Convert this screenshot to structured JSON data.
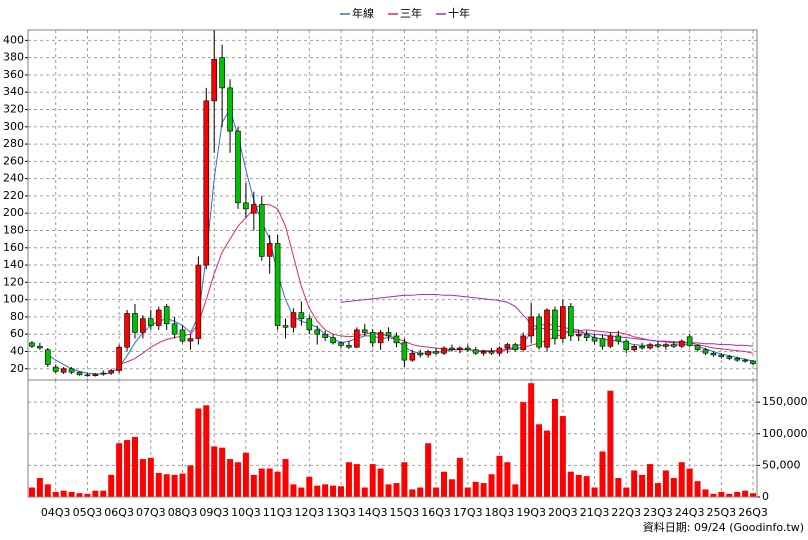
{
  "chart_data": [
    {
      "type": "candlestick",
      "categories": [
        null,
        null,
        null,
        "04Q3",
        null,
        null,
        null,
        "05Q3",
        null,
        null,
        null,
        "06Q3",
        null,
        null,
        null,
        "07Q3",
        null,
        null,
        null,
        "08Q3",
        null,
        null,
        null,
        "09Q3",
        null,
        null,
        null,
        "10Q3",
        null,
        null,
        null,
        "11Q3",
        null,
        null,
        null,
        "12Q3",
        null,
        null,
        null,
        "13Q3",
        null,
        null,
        null,
        "14Q3",
        null,
        null,
        null,
        "15Q3",
        null,
        null,
        null,
        "16Q3",
        null,
        null,
        null,
        "17Q3",
        null,
        null,
        null,
        "18Q3",
        null,
        null,
        null,
        "19Q3",
        null,
        null,
        null,
        "20Q3",
        null,
        null,
        null,
        "21Q3",
        null,
        null,
        null,
        "22Q3",
        null,
        null,
        null,
        "23Q3",
        null,
        null,
        null,
        "24Q3",
        null,
        null,
        null,
        "25Q3",
        null,
        null,
        null,
        "26Q3"
      ],
      "open": [
        50,
        46,
        42,
        22,
        16,
        20,
        16,
        13,
        12,
        14,
        15,
        18,
        45,
        84,
        62,
        78,
        70,
        92,
        72,
        65,
        52,
        55,
        140,
        330,
        380,
        345,
        295,
        212,
        200,
        210,
        150,
        165,
        70,
        68,
        85,
        78,
        65,
        60,
        56,
        50,
        47,
        45,
        65,
        62,
        50,
        62,
        58,
        50,
        30,
        38,
        36,
        40,
        38,
        44,
        42,
        44,
        42,
        38,
        40,
        38,
        44,
        48,
        42,
        58,
        80,
        45,
        88,
        55,
        92,
        58,
        60,
        56,
        55,
        46,
        58,
        52,
        42,
        46,
        44,
        48,
        46,
        48,
        46,
        57,
        47,
        42,
        38,
        36,
        34,
        32,
        30,
        29
      ],
      "high": [
        52,
        50,
        44,
        25,
        22,
        22,
        17,
        15,
        15,
        18,
        20,
        48,
        88,
        95,
        82,
        88,
        92,
        95,
        80,
        70,
        60,
        150,
        345,
        412,
        395,
        355,
        300,
        235,
        225,
        220,
        175,
        175,
        78,
        90,
        98,
        82,
        70,
        64,
        60,
        52,
        52,
        68,
        72,
        66,
        65,
        68,
        62,
        55,
        42,
        42,
        42,
        44,
        46,
        48,
        46,
        48,
        45,
        42,
        44,
        46,
        50,
        50,
        62,
        96,
        84,
        90,
        92,
        100,
        96,
        65,
        64,
        60,
        60,
        62,
        64,
        54,
        48,
        50,
        50,
        52,
        50,
        52,
        54,
        60,
        48,
        44,
        40,
        38,
        36,
        34,
        32,
        30
      ],
      "low": [
        44,
        42,
        22,
        15,
        14,
        14,
        12,
        11,
        11,
        12,
        13,
        15,
        40,
        55,
        55,
        65,
        65,
        65,
        55,
        50,
        42,
        48,
        135,
        270,
        300,
        270,
        205,
        195,
        180,
        145,
        130,
        65,
        55,
        62,
        70,
        60,
        48,
        52,
        48,
        44,
        43,
        44,
        58,
        45,
        42,
        52,
        45,
        22,
        28,
        33,
        33,
        36,
        36,
        40,
        38,
        40,
        36,
        35,
        36,
        35,
        38,
        40,
        40,
        50,
        42,
        40,
        48,
        50,
        52,
        52,
        52,
        48,
        42,
        44,
        48,
        38,
        40,
        42,
        42,
        44,
        42,
        44,
        44,
        45,
        40,
        36,
        34,
        32,
        30,
        28,
        27,
        24
      ],
      "close": [
        46,
        44,
        25,
        17,
        20,
        16,
        13,
        12,
        14,
        15,
        18,
        45,
        84,
        62,
        78,
        70,
        88,
        72,
        60,
        52,
        55,
        140,
        330,
        378,
        345,
        295,
        212,
        205,
        210,
        150,
        165,
        70,
        68,
        85,
        78,
        65,
        60,
        56,
        50,
        47,
        45,
        65,
        62,
        50,
        62,
        58,
        50,
        30,
        38,
        36,
        40,
        38,
        44,
        42,
        44,
        42,
        38,
        40,
        38,
        44,
        48,
        42,
        58,
        80,
        45,
        88,
        55,
        92,
        58,
        60,
        56,
        52,
        46,
        58,
        52,
        42,
        46,
        44,
        48,
        46,
        48,
        46,
        52,
        47,
        42,
        38,
        36,
        34,
        32,
        30,
        29,
        26
      ],
      "up_color": "#ff0000",
      "down_color": "#00c000",
      "lines": [
        {
          "name": "年線",
          "color": "#2f6fd0",
          "values": [
            null,
            null,
            36,
            30,
            25,
            20,
            17,
            15,
            14,
            14,
            15,
            22,
            35,
            50,
            62,
            70,
            75,
            78,
            75,
            70,
            62,
            80,
            150,
            240,
            305,
            320,
            290,
            250,
            215,
            190,
            170,
            130,
            100,
            80,
            75,
            72,
            68,
            60,
            55,
            50,
            52,
            55,
            58,
            58,
            55,
            56,
            54,
            45,
            40,
            38,
            38,
            39,
            40,
            42,
            43,
            42,
            41,
            40,
            40,
            41,
            43,
            45,
            50,
            62,
            70,
            72,
            70,
            68,
            66,
            65,
            60,
            56,
            54,
            53,
            52,
            50,
            48,
            47,
            47,
            47,
            47,
            47,
            48,
            48,
            46,
            43,
            40,
            37,
            35,
            33,
            31,
            29
          ]
        },
        {
          "name": "三年",
          "color": "#e0286a",
          "values": [
            null,
            null,
            null,
            null,
            null,
            null,
            null,
            null,
            null,
            null,
            null,
            25,
            28,
            32,
            38,
            45,
            50,
            54,
            56,
            58,
            60,
            72,
            100,
            130,
            155,
            170,
            185,
            195,
            205,
            210,
            210,
            205,
            185,
            150,
            115,
            90,
            75,
            65,
            60,
            58,
            57,
            58,
            60,
            62,
            60,
            58,
            55,
            52,
            48,
            46,
            45,
            44,
            43,
            42,
            42,
            42,
            41,
            41,
            41,
            41,
            42,
            43,
            45,
            47,
            50,
            53,
            57,
            60,
            63,
            64,
            65,
            64,
            63,
            62,
            62,
            60,
            57,
            55,
            53,
            52,
            51,
            50,
            50,
            50,
            48,
            46,
            44,
            43,
            42,
            41,
            40,
            38
          ]
        },
        {
          "name": "十年",
          "color": "#9a30c8",
          "values": [
            null,
            null,
            null,
            null,
            null,
            null,
            null,
            null,
            null,
            null,
            null,
            null,
            null,
            null,
            null,
            null,
            null,
            null,
            null,
            null,
            null,
            null,
            null,
            null,
            null,
            null,
            null,
            null,
            null,
            null,
            null,
            null,
            null,
            null,
            null,
            null,
            null,
            null,
            null,
            97,
            98,
            99,
            100,
            101,
            102,
            103,
            104,
            105,
            105,
            106,
            106,
            106,
            105,
            105,
            104,
            103,
            102,
            101,
            100,
            99,
            97,
            92,
            82,
            72,
            67,
            66,
            65,
            64,
            63,
            62,
            61,
            60,
            59,
            58,
            57,
            56,
            55,
            54,
            53,
            52,
            52,
            51,
            51,
            50,
            50,
            49,
            49,
            48,
            48,
            47,
            47,
            46
          ]
        }
      ],
      "ylim": [
        7,
        412
      ],
      "yticks": [
        20,
        40,
        60,
        80,
        100,
        120,
        140,
        160,
        180,
        200,
        220,
        240,
        260,
        280,
        300,
        320,
        340,
        360,
        380,
        400
      ],
      "y_axis": "left",
      "grid": true,
      "legend": "top"
    },
    {
      "type": "bar",
      "values": [
        15000,
        30000,
        20000,
        8000,
        10000,
        8000,
        6000,
        5000,
        10000,
        10000,
        35000,
        85000,
        90000,
        95000,
        60000,
        62000,
        38000,
        36000,
        35000,
        37000,
        50000,
        140000,
        145000,
        80000,
        78000,
        60000,
        55000,
        70000,
        35000,
        45000,
        45000,
        40000,
        60000,
        20000,
        15000,
        32000,
        18000,
        20000,
        18000,
        17000,
        55000,
        52000,
        15000,
        52000,
        45000,
        20000,
        22000,
        55000,
        12000,
        15000,
        85000,
        15000,
        40000,
        28000,
        62000,
        15000,
        24000,
        22000,
        36000,
        65000,
        55000,
        20000,
        150000,
        180000,
        115000,
        105000,
        155000,
        128000,
        40000,
        35000,
        33000,
        15000,
        72000,
        168000,
        30000,
        15000,
        42000,
        35000,
        52000,
        22000,
        42000,
        30000,
        55000,
        45000,
        25000,
        12000,
        5000,
        8000,
        5000,
        8000,
        10000,
        6000
      ],
      "color": "#ff0000",
      "ylim": [
        0,
        185000
      ],
      "yticks": [
        0,
        {
          "value": 50000,
          "label": "50,000"
        },
        {
          "value": 100000,
          "label": "100,000"
        },
        {
          "value": 150000,
          "label": "150,000"
        }
      ],
      "y_axis": "right",
      "grid": true,
      "source": "資料日期: 09/24 (Goodinfo.tw)"
    }
  ]
}
